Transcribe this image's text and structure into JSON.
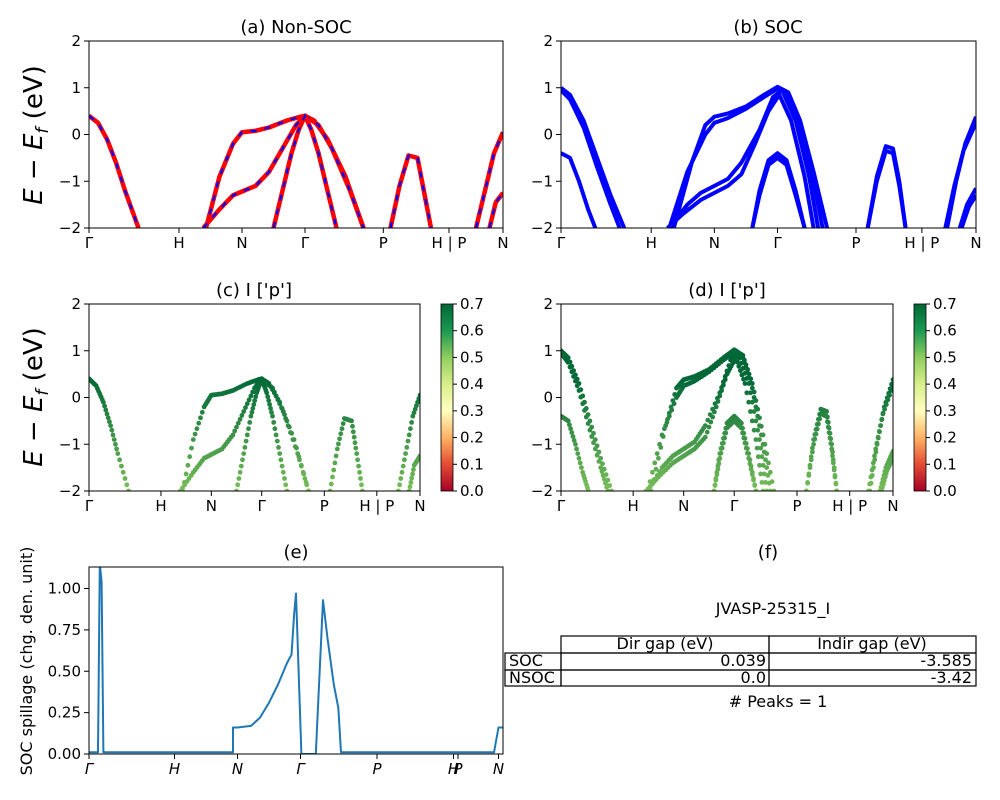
{
  "chart_data": [
    {
      "id": "a",
      "type": "line",
      "title": "(a) Non-SOC",
      "ylabel": "E − E_f (eV)",
      "ylim": [
        -2,
        2
      ],
      "yticks": [
        "2",
        "1",
        "0",
        "−1",
        "−2"
      ],
      "xlim": [
        0,
        4.6
      ],
      "xticks": [
        {
          "x": 0,
          "label": "Γ"
        },
        {
          "x": 1,
          "label": "H"
        },
        {
          "x": 1.7,
          "label": "N"
        },
        {
          "x": 2.4,
          "label": "Γ"
        },
        {
          "x": 3.27,
          "label": "P"
        },
        {
          "x": 4.0,
          "label": "H | P"
        },
        {
          "x": 4.6,
          "label": "N"
        }
      ],
      "series_color": "#ff0000",
      "dash_color": "#0000ff",
      "bands": [
        {
          "x": [
            0,
            0.1,
            0.2,
            0.3,
            0.4,
            0.55
          ],
          "y": [
            0.4,
            0.25,
            -0.1,
            -0.6,
            -1.2,
            -2
          ]
        },
        {
          "x": [
            1.3,
            1.45,
            1.6,
            1.7,
            1.85,
            2.0,
            2.2,
            2.35,
            2.4,
            2.5,
            2.65,
            2.85,
            3.05
          ],
          "y": [
            -2,
            -0.9,
            -0.2,
            0.05,
            0.08,
            0.15,
            0.3,
            0.38,
            0.4,
            0.3,
            -0.1,
            -0.9,
            -2
          ]
        },
        {
          "x": [
            1.27,
            1.45,
            1.6,
            1.7,
            1.85,
            2.0,
            2.15,
            2.3,
            2.4,
            2.55,
            2.7,
            2.9,
            3.05
          ],
          "y": [
            -2,
            -1.6,
            -1.3,
            -1.22,
            -1.1,
            -0.8,
            -0.3,
            0.2,
            0.4,
            0.2,
            -0.3,
            -1.2,
            -2
          ]
        },
        {
          "x": [
            2.05,
            2.15,
            2.25,
            2.33,
            2.4,
            2.47,
            2.55,
            2.65,
            2.75
          ],
          "y": [
            -2,
            -1.2,
            -0.4,
            0.1,
            0.4,
            0.1,
            -0.4,
            -1.2,
            -2
          ]
        },
        {
          "x": [
            3.35,
            3.45,
            3.55,
            3.65,
            3.72,
            3.8
          ],
          "y": [
            -2,
            -1.1,
            -0.45,
            -0.5,
            -1.2,
            -2
          ]
        },
        {
          "x": [
            4.3,
            4.4,
            4.5,
            4.6
          ],
          "y": [
            -2,
            -1.2,
            -0.4,
            0.05
          ]
        },
        {
          "x": [
            4.45,
            4.52,
            4.6
          ],
          "y": [
            -2,
            -1.45,
            -1.25
          ]
        }
      ]
    },
    {
      "id": "b",
      "type": "line",
      "title": "(b) SOC",
      "ylim": [
        -2,
        2
      ],
      "yticks": [
        "2",
        "1",
        "0",
        "−1",
        "−2"
      ],
      "xlim": [
        0,
        4.6
      ],
      "xticks": [
        {
          "x": 0,
          "label": "Γ"
        },
        {
          "x": 1,
          "label": "H"
        },
        {
          "x": 1.7,
          "label": "N"
        },
        {
          "x": 2.4,
          "label": "Γ"
        },
        {
          "x": 3.27,
          "label": "P"
        },
        {
          "x": 4.0,
          "label": "H | P"
        },
        {
          "x": 4.6,
          "label": "N"
        }
      ],
      "series_color": "#0000ff",
      "bands": [
        {
          "x": [
            0,
            0.1,
            0.25,
            0.4,
            0.55,
            0.7
          ],
          "y": [
            1.0,
            0.85,
            0.3,
            -0.5,
            -1.3,
            -2
          ]
        },
        {
          "x": [
            0,
            0.1,
            0.25,
            0.4,
            0.55,
            0.65
          ],
          "y": [
            0.95,
            0.75,
            0.15,
            -0.7,
            -1.5,
            -2
          ]
        },
        {
          "x": [
            0,
            0.1,
            0.2,
            0.3,
            0.38
          ],
          "y": [
            -0.4,
            -0.5,
            -1.0,
            -1.6,
            -2
          ]
        },
        {
          "x": [
            1.25,
            1.45,
            1.6,
            1.7,
            1.85,
            2.05,
            2.25,
            2.4,
            2.52,
            2.65,
            2.8,
            2.95
          ],
          "y": [
            -2,
            -0.6,
            0.2,
            0.38,
            0.45,
            0.6,
            0.85,
            1.02,
            0.9,
            0.3,
            -0.8,
            -2
          ]
        },
        {
          "x": [
            1.2,
            1.4,
            1.6,
            1.7,
            1.85,
            2.05,
            2.25,
            2.4,
            2.52,
            2.65,
            2.8,
            2.9
          ],
          "y": [
            -2,
            -0.8,
            0.0,
            0.25,
            0.35,
            0.55,
            0.8,
            0.98,
            0.85,
            0.2,
            -1.0,
            -2
          ]
        },
        {
          "x": [
            1.2,
            1.4,
            1.55,
            1.7,
            1.85,
            2.0,
            2.2,
            2.35,
            2.45,
            2.6,
            2.75,
            2.85
          ],
          "y": [
            -2,
            -1.5,
            -1.25,
            -1.1,
            -0.95,
            -0.6,
            0.1,
            0.8,
            0.95,
            0.3,
            -0.9,
            -2
          ]
        },
        {
          "x": [
            1.18,
            1.35,
            1.55,
            1.7,
            1.85,
            2.0,
            2.15,
            2.3,
            2.42,
            2.55,
            2.7,
            2.8
          ],
          "y": [
            -2,
            -1.7,
            -1.4,
            -1.25,
            -1.1,
            -0.85,
            -0.2,
            0.5,
            0.85,
            0.3,
            -0.9,
            -2
          ]
        },
        {
          "x": [
            2.12,
            2.2,
            2.3,
            2.4,
            2.5,
            2.6,
            2.7
          ],
          "y": [
            -2,
            -1.2,
            -0.55,
            -0.4,
            -0.55,
            -1.2,
            -2
          ]
        },
        {
          "x": [
            2.12,
            2.2,
            2.3,
            2.4,
            2.5,
            2.6,
            2.7
          ],
          "y": [
            -2,
            -1.3,
            -0.65,
            -0.5,
            -0.65,
            -1.3,
            -2
          ]
        },
        {
          "x": [
            3.4,
            3.5,
            3.6,
            3.68,
            3.75,
            3.82
          ],
          "y": [
            -2,
            -0.9,
            -0.25,
            -0.3,
            -1.0,
            -2
          ]
        },
        {
          "x": [
            3.4,
            3.5,
            3.6,
            3.68,
            3.75,
            3.82
          ],
          "y": [
            -2,
            -1.0,
            -0.35,
            -0.4,
            -1.1,
            -2
          ]
        },
        {
          "x": [
            4.28,
            4.38,
            4.48,
            4.6
          ],
          "y": [
            -2,
            -1.0,
            -0.2,
            0.38
          ]
        },
        {
          "x": [
            4.26,
            4.36,
            4.46,
            4.6
          ],
          "y": [
            -2,
            -1.1,
            -0.35,
            0.25
          ]
        },
        {
          "x": [
            4.42,
            4.5,
            4.6
          ],
          "y": [
            -2,
            -1.5,
            -1.15
          ]
        },
        {
          "x": [
            4.44,
            4.52,
            4.6
          ],
          "y": [
            -2,
            -1.55,
            -1.3
          ]
        }
      ]
    },
    {
      "id": "c",
      "type": "scatter",
      "title": "(c)  I ['p']",
      "ylabel": "E − E_f (eV)",
      "ylim": [
        -2,
        2
      ],
      "yticks": [
        "2",
        "1",
        "0",
        "−1",
        "−2"
      ],
      "xlim": [
        0,
        4.6
      ],
      "xticks": [
        {
          "x": 0,
          "label": "Γ"
        },
        {
          "x": 1,
          "label": "H"
        },
        {
          "x": 1.7,
          "label": "N"
        },
        {
          "x": 2.4,
          "label": "Γ"
        },
        {
          "x": 3.27,
          "label": "P"
        },
        {
          "x": 4.0,
          "label": "H | P"
        },
        {
          "x": 4.6,
          "label": "N"
        }
      ],
      "colorbar": {
        "min": 0.0,
        "max": 0.7,
        "ticks": [
          "0.0",
          "0.1",
          "0.2",
          "0.3",
          "0.4",
          "0.5",
          "0.6",
          "0.7"
        ],
        "cmap": "RdYlGn"
      }
    },
    {
      "id": "d",
      "type": "scatter",
      "title": "(d) I ['p']",
      "ylim": [
        -2,
        2
      ],
      "yticks": [
        "2",
        "1",
        "0",
        "−1",
        "−2"
      ],
      "xlim": [
        0,
        4.6
      ],
      "xticks": [
        {
          "x": 0,
          "label": "Γ"
        },
        {
          "x": 1,
          "label": "H"
        },
        {
          "x": 1.7,
          "label": "N"
        },
        {
          "x": 2.4,
          "label": "Γ"
        },
        {
          "x": 3.27,
          "label": "P"
        },
        {
          "x": 4.0,
          "label": "H | P"
        },
        {
          "x": 4.6,
          "label": "N"
        }
      ],
      "colorbar": {
        "min": 0.0,
        "max": 0.7,
        "ticks": [
          "0.0",
          "0.1",
          "0.2",
          "0.3",
          "0.4",
          "0.5",
          "0.6",
          "0.7"
        ],
        "cmap": "RdYlGn"
      }
    },
    {
      "id": "e",
      "type": "line",
      "title": "(e)",
      "ylabel": "SOC spillage (chg. den. unit)",
      "ylim": [
        0,
        1.13
      ],
      "yticks": [
        "1.00",
        "0.75",
        "0.50",
        "0.25",
        "0.00"
      ],
      "ytick_values": [
        1.0,
        0.75,
        0.5,
        0.25,
        0.0
      ],
      "xlim": [
        0,
        4.6
      ],
      "xticks": [
        {
          "x": 0,
          "label": "Γ"
        },
        {
          "x": 0.95,
          "label": "H"
        },
        {
          "x": 1.65,
          "label": "N"
        },
        {
          "x": 2.35,
          "label": "Γ"
        },
        {
          "x": 3.2,
          "label": "P"
        },
        {
          "x": 4.05,
          "label": "H"
        },
        {
          "x": 4.1,
          "label": "P"
        },
        {
          "x": 4.55,
          "label": "N"
        }
      ],
      "color": "#1f77b4",
      "x": [
        0,
        0.05,
        0.1,
        0.12,
        0.14,
        0.16,
        1.6,
        1.6,
        1.65,
        1.8,
        1.9,
        2.0,
        2.1,
        2.2,
        2.25,
        2.28,
        2.3,
        2.36,
        2.37,
        2.5,
        2.52,
        2.6,
        2.65,
        2.72,
        2.77,
        2.8,
        3.5,
        4.5,
        4.55,
        4.6
      ],
      "y": [
        0.01,
        0.01,
        0.01,
        1.15,
        1.04,
        0.01,
        0.01,
        0.16,
        0.16,
        0.17,
        0.22,
        0.31,
        0.42,
        0.55,
        0.6,
        0.85,
        0.97,
        0.0,
        0.0,
        0.0,
        0.0,
        0.93,
        0.7,
        0.42,
        0.28,
        0.01,
        0.01,
        0.01,
        0.16,
        0.16
      ]
    }
  ],
  "panel_f": {
    "title": "(f)",
    "subtitle": "JVASP-25315_I",
    "table": {
      "headers": [
        "Dir gap (eV)",
        "Indir gap (eV)"
      ],
      "rows": [
        {
          "label": "SOC",
          "dir": "0.039",
          "indir": "-3.585"
        },
        {
          "label": "NSOC",
          "dir": "0.0",
          "indir": "-3.42"
        }
      ]
    },
    "peaks": "# Peaks = 1"
  }
}
